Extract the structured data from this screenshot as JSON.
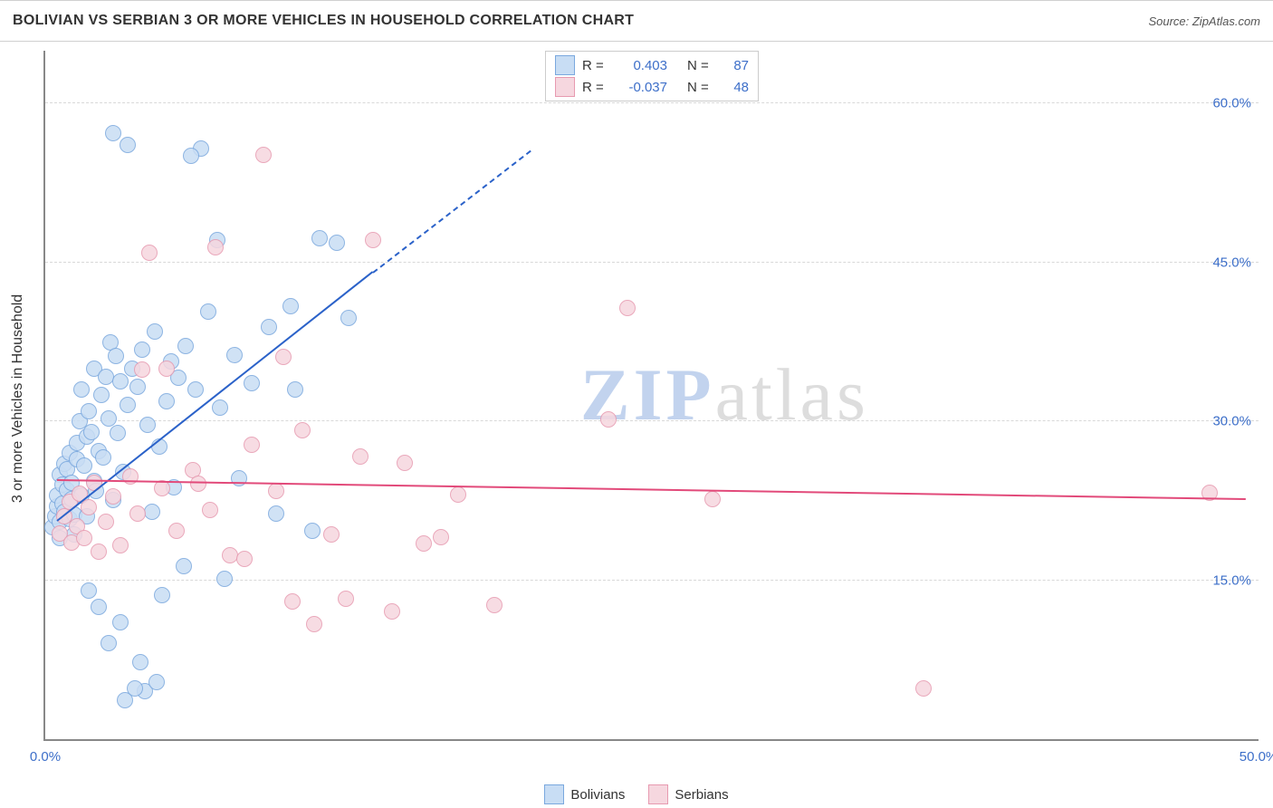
{
  "title": "BOLIVIAN VS SERBIAN 3 OR MORE VEHICLES IN HOUSEHOLD CORRELATION CHART",
  "source": "Source: ZipAtlas.com",
  "yaxis_title": "3 or more Vehicles in Household",
  "watermark": {
    "a": "ZIP",
    "b": "atlas"
  },
  "chart": {
    "type": "scatter",
    "xlim": [
      0,
      50
    ],
    "ylim": [
      0,
      65
    ],
    "xticks": [
      {
        "v": 0,
        "label": "0.0%"
      },
      {
        "v": 50,
        "label": "50.0%"
      }
    ],
    "yticks": [
      {
        "v": 15,
        "label": "15.0%"
      },
      {
        "v": 30,
        "label": "30.0%"
      },
      {
        "v": 45,
        "label": "45.0%"
      },
      {
        "v": 60,
        "label": "60.0%"
      }
    ],
    "marker_radius": 9,
    "marker_stroke": 1.3,
    "grid_color": "#d8d8d8",
    "axis_color": "#888888",
    "series": [
      {
        "name": "Bolivians",
        "fill": "#c8ddf4",
        "stroke": "#7aa8de",
        "line_color": "#2b62c9",
        "R": "0.403",
        "N": "87",
        "trend": {
          "x1": 0.5,
          "y1": 20.5,
          "x2": 13.5,
          "y2": 44,
          "dash_to_x": 20,
          "dash_to_y": 55.5
        },
        "points": [
          [
            0.3,
            20
          ],
          [
            0.4,
            21
          ],
          [
            0.5,
            22
          ],
          [
            0.5,
            23
          ],
          [
            0.6,
            25
          ],
          [
            0.6,
            20.5
          ],
          [
            0.6,
            19
          ],
          [
            0.7,
            22.2
          ],
          [
            0.7,
            24
          ],
          [
            0.8,
            26
          ],
          [
            0.8,
            21.5
          ],
          [
            0.9,
            23.5
          ],
          [
            0.9,
            25.5
          ],
          [
            1.0,
            27
          ],
          [
            1.0,
            20.8
          ],
          [
            1.1,
            22.7
          ],
          [
            1.1,
            24.2
          ],
          [
            1.2,
            19.3
          ],
          [
            1.2,
            21.2
          ],
          [
            1.3,
            26.4
          ],
          [
            1.3,
            28
          ],
          [
            1.4,
            30
          ],
          [
            1.5,
            23
          ],
          [
            1.5,
            33
          ],
          [
            1.6,
            25.8
          ],
          [
            1.7,
            28.6
          ],
          [
            1.7,
            21
          ],
          [
            1.8,
            31
          ],
          [
            1.9,
            29
          ],
          [
            2.0,
            24.4
          ],
          [
            2.0,
            35
          ],
          [
            2.1,
            23.4
          ],
          [
            2.2,
            27.2
          ],
          [
            2.3,
            32.5
          ],
          [
            2.4,
            26.6
          ],
          [
            2.5,
            34.2
          ],
          [
            2.6,
            30.3
          ],
          [
            2.7,
            37.5
          ],
          [
            2.8,
            22.6
          ],
          [
            2.9,
            36.2
          ],
          [
            3.0,
            28.9
          ],
          [
            3.1,
            33.8
          ],
          [
            3.2,
            25.2
          ],
          [
            3.4,
            31.6
          ],
          [
            3.6,
            35
          ],
          [
            3.8,
            33.3
          ],
          [
            4.0,
            36.8
          ],
          [
            4.2,
            29.7
          ],
          [
            4.5,
            38.5
          ],
          [
            4.7,
            27.6
          ],
          [
            5.0,
            31.9
          ],
          [
            5.2,
            35.7
          ],
          [
            5.5,
            34.1
          ],
          [
            5.8,
            37.1
          ],
          [
            6.2,
            33.0
          ],
          [
            6.7,
            40.4
          ],
          [
            7.2,
            31.3
          ],
          [
            7.8,
            36.3
          ],
          [
            8.5,
            33.6
          ],
          [
            9.2,
            38.9
          ],
          [
            10.1,
            40.9
          ],
          [
            11.3,
            47.3
          ],
          [
            12.5,
            39.8
          ],
          [
            2.8,
            57.2
          ],
          [
            3.3,
            3.7
          ],
          [
            6.4,
            55.8
          ],
          [
            4.8,
            13.6
          ],
          [
            5.7,
            16.3
          ],
          [
            3.9,
            7.3
          ],
          [
            3.4,
            56.1
          ],
          [
            3.1,
            11.0
          ],
          [
            2.2,
            12.5
          ],
          [
            2.6,
            9.1
          ],
          [
            1.8,
            14.0
          ],
          [
            6.0,
            55.1
          ],
          [
            4.4,
            21.5
          ],
          [
            5.3,
            23.8
          ],
          [
            7.1,
            47.1
          ],
          [
            8.0,
            24.6
          ],
          [
            9.5,
            21.3
          ],
          [
            10.3,
            33.0
          ],
          [
            11.0,
            19.7
          ],
          [
            12.0,
            46.9
          ],
          [
            4.1,
            4.5
          ],
          [
            4.6,
            5.4
          ],
          [
            3.7,
            4.8
          ],
          [
            7.4,
            15.1
          ]
        ]
      },
      {
        "name": "Serbians",
        "fill": "#f6d7df",
        "stroke": "#e79ab0",
        "line_color": "#e24a7a",
        "R": "-0.037",
        "N": "48",
        "trend": {
          "x1": 0.5,
          "y1": 24.4,
          "x2": 49.5,
          "y2": 22.6
        },
        "points": [
          [
            0.6,
            19.4
          ],
          [
            0.8,
            21.0
          ],
          [
            1.0,
            22.4
          ],
          [
            1.1,
            18.6
          ],
          [
            1.3,
            20.1
          ],
          [
            1.4,
            23.2
          ],
          [
            1.6,
            19.0
          ],
          [
            1.8,
            21.9
          ],
          [
            2.0,
            24.2
          ],
          [
            2.2,
            17.7
          ],
          [
            2.5,
            20.5
          ],
          [
            2.8,
            22.9
          ],
          [
            3.1,
            18.3
          ],
          [
            3.5,
            24.8
          ],
          [
            3.8,
            21.3
          ],
          [
            4.3,
            45.9
          ],
          [
            4.8,
            23.7
          ],
          [
            5.4,
            19.7
          ],
          [
            6.1,
            25.4
          ],
          [
            6.8,
            21.6
          ],
          [
            7.6,
            17.4
          ],
          [
            8.5,
            27.8
          ],
          [
            9.5,
            23.4
          ],
          [
            10.6,
            29.2
          ],
          [
            11.8,
            19.3
          ],
          [
            13.0,
            26.7
          ],
          [
            14.3,
            12.1
          ],
          [
            15.6,
            18.5
          ],
          [
            17.0,
            23.1
          ],
          [
            18.5,
            12.7
          ],
          [
            10.2,
            13.0
          ],
          [
            11.1,
            10.9
          ],
          [
            12.4,
            13.3
          ],
          [
            9.0,
            55.2
          ],
          [
            23.2,
            30.2
          ],
          [
            24.0,
            40.7
          ],
          [
            27.5,
            22.7
          ],
          [
            36.2,
            4.8
          ],
          [
            7.0,
            46.4
          ],
          [
            5.0,
            35.0
          ],
          [
            9.8,
            36.1
          ],
          [
            8.2,
            17.0
          ],
          [
            4.0,
            34.9
          ],
          [
            6.3,
            24.1
          ],
          [
            14.8,
            26.1
          ],
          [
            16.3,
            19.1
          ],
          [
            48.0,
            23.3
          ],
          [
            13.5,
            47.1
          ]
        ]
      }
    ]
  },
  "legend_bottom": [
    {
      "label": "Bolivians",
      "fill": "#c8ddf4",
      "stroke": "#7aa8de"
    },
    {
      "label": "Serbians",
      "fill": "#f6d7df",
      "stroke": "#e79ab0"
    }
  ]
}
